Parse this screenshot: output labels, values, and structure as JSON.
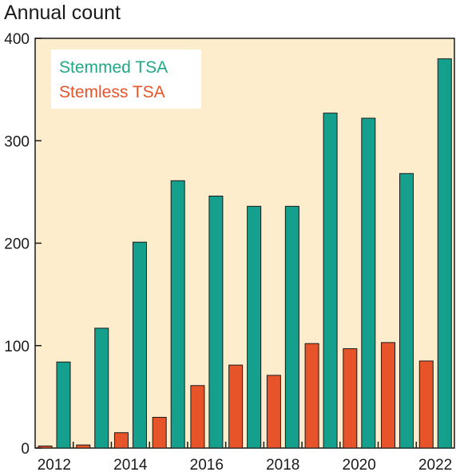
{
  "chart_data": {
    "type": "bar",
    "ylabel": "Annual count",
    "ylim": [
      0,
      400
    ],
    "yticks": [
      0,
      100,
      200,
      300,
      400
    ],
    "categories": [
      2012,
      2013,
      2014,
      2015,
      2016,
      2017,
      2018,
      2019,
      2020,
      2021,
      2022
    ],
    "xtick_labels": [
      "2012",
      "2014",
      "2016",
      "2018",
      "2020",
      "2022"
    ],
    "series": [
      {
        "name": "Stemless TSA",
        "color": "#e8542a",
        "values": [
          2,
          3,
          15,
          30,
          61,
          81,
          71,
          102,
          97,
          103,
          85
        ]
      },
      {
        "name": "Stemmed TSA",
        "color": "#15a08e",
        "values": [
          84,
          117,
          201,
          261,
          246,
          236,
          236,
          327,
          322,
          268,
          380
        ]
      }
    ],
    "legend": {
      "position": "top-left",
      "entries": [
        {
          "label": "Stemmed TSA",
          "color": "#20a986"
        },
        {
          "label": "Stemless TSA",
          "color": "#e8542a"
        }
      ]
    },
    "background_color": "#fdedcd",
    "grid": false
  }
}
